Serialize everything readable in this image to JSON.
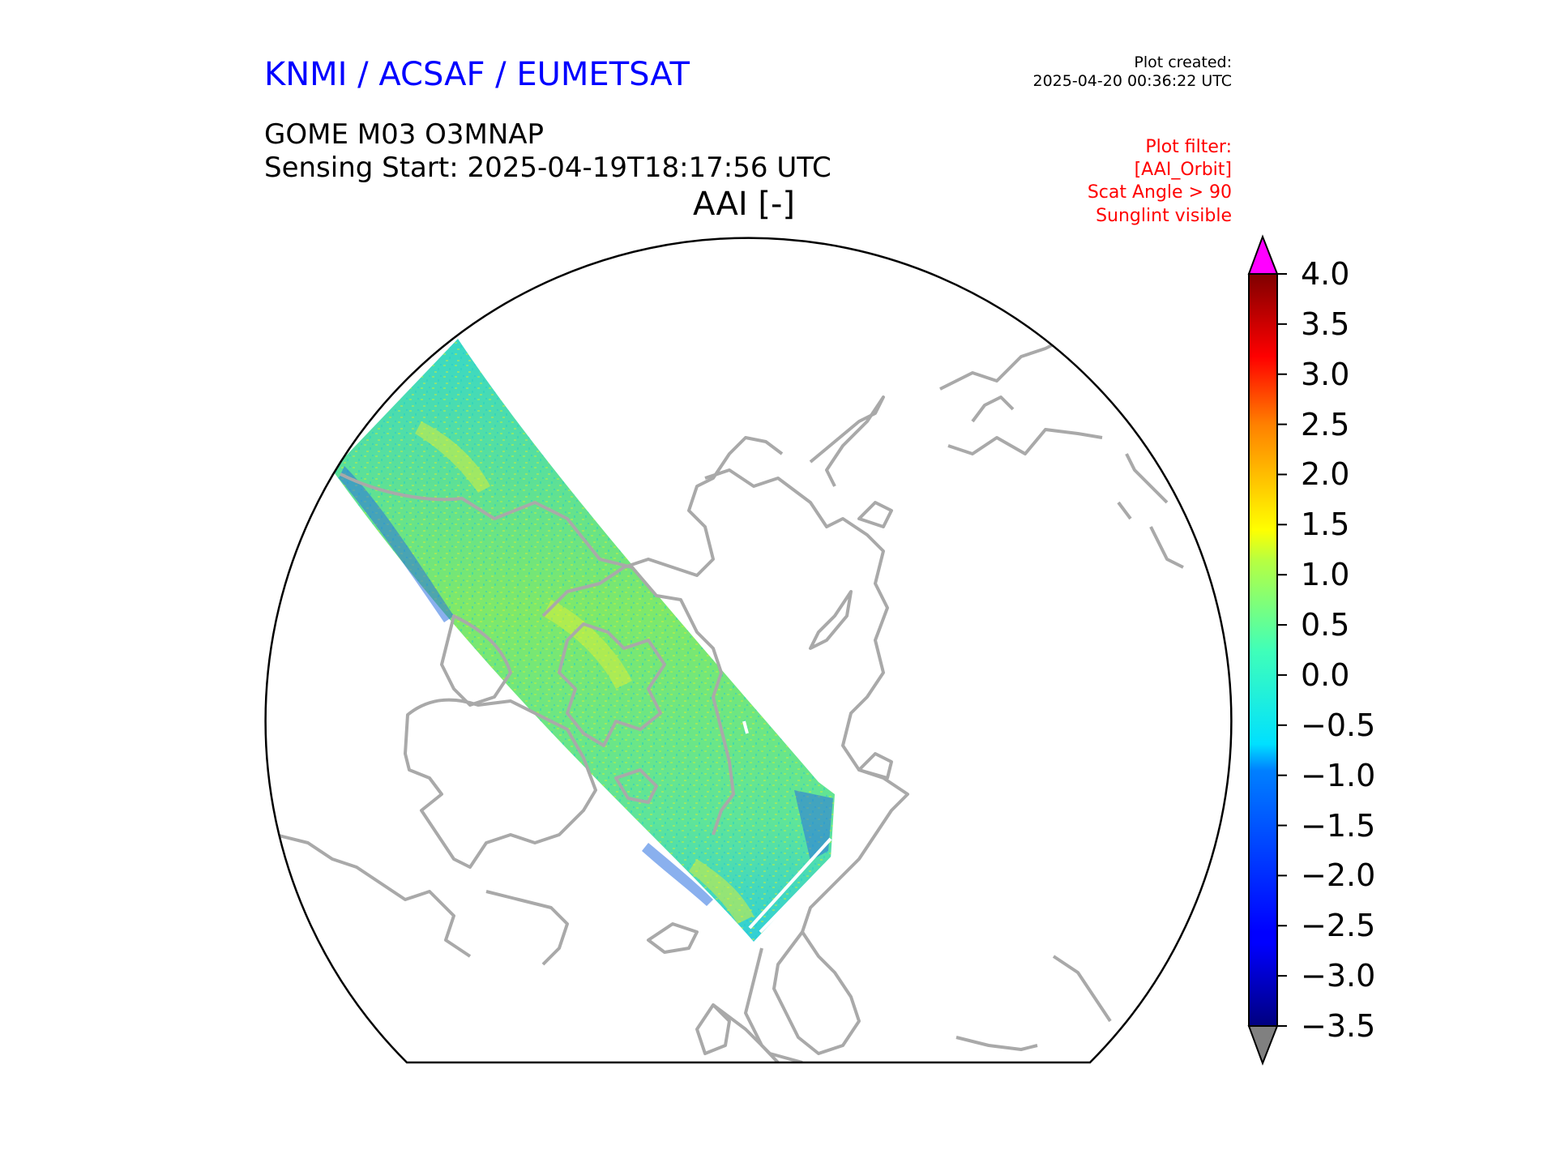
{
  "header": {
    "organization": "KNMI / ACSAF / EUMETSAT",
    "plot_created_label": "Plot created:",
    "plot_created_time": "2025-04-20 00:36:22 UTC",
    "product": "GOME M03 O3MNAP",
    "sensing_start": "Sensing Start: 2025-04-19T18:17:56 UTC",
    "map_title": "AAI [-]",
    "filter_lines": [
      "Plot filter:",
      "[AAI_Orbit]",
      "Scat Angle > 90",
      "Sunglint visible"
    ]
  },
  "colorbar": {
    "min": -3.5,
    "max": 4.0,
    "ticks": [
      "4.0",
      "3.5",
      "3.0",
      "2.5",
      "2.0",
      "1.5",
      "1.0",
      "0.5",
      "0.0",
      "−0.5",
      "−1.0",
      "−1.5",
      "−2.0",
      "−2.5",
      "−3.0",
      "−3.5"
    ],
    "tick_values": [
      4.0,
      3.5,
      3.0,
      2.5,
      2.0,
      1.5,
      1.0,
      0.5,
      0.0,
      -0.5,
      -1.0,
      -1.5,
      -2.0,
      -2.5,
      -3.0,
      -3.5
    ],
    "colormap": "jet",
    "over_color": "#ff00ff",
    "under_color": "#808080"
  },
  "colors": {
    "coastline": "#a9a9a9",
    "frame": "#000000",
    "swath_dominant": "#4ee38c"
  }
}
